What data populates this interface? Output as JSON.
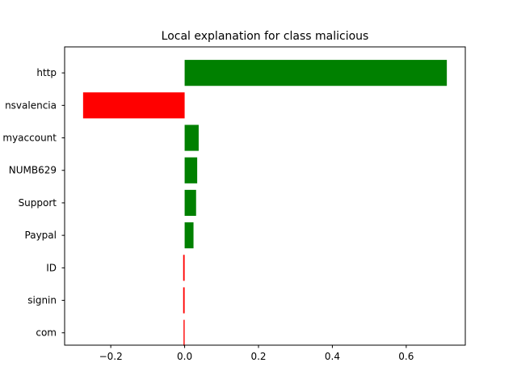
{
  "chart_data": {
    "type": "bar",
    "orientation": "horizontal",
    "title": "Local explanation for class malicious",
    "xlabel": "",
    "ylabel": "",
    "categories": [
      "http",
      "nsvalencia",
      "myaccount",
      "NUMB629",
      "Support",
      "Paypal",
      "ID",
      "signin",
      "com"
    ],
    "values": [
      0.71,
      -0.275,
      0.038,
      0.034,
      0.031,
      0.024,
      -0.004,
      -0.004,
      -0.003
    ],
    "xlim": [
      -0.325,
      0.76
    ],
    "xticks": [
      -0.2,
      0.0,
      0.2,
      0.4,
      0.6
    ],
    "xtick_labels": [
      "−0.2",
      "0.0",
      "0.2",
      "0.4",
      "0.6"
    ],
    "positive_color": "#008000",
    "negative_color": "#ff0000",
    "grid": false,
    "legend": "none"
  }
}
